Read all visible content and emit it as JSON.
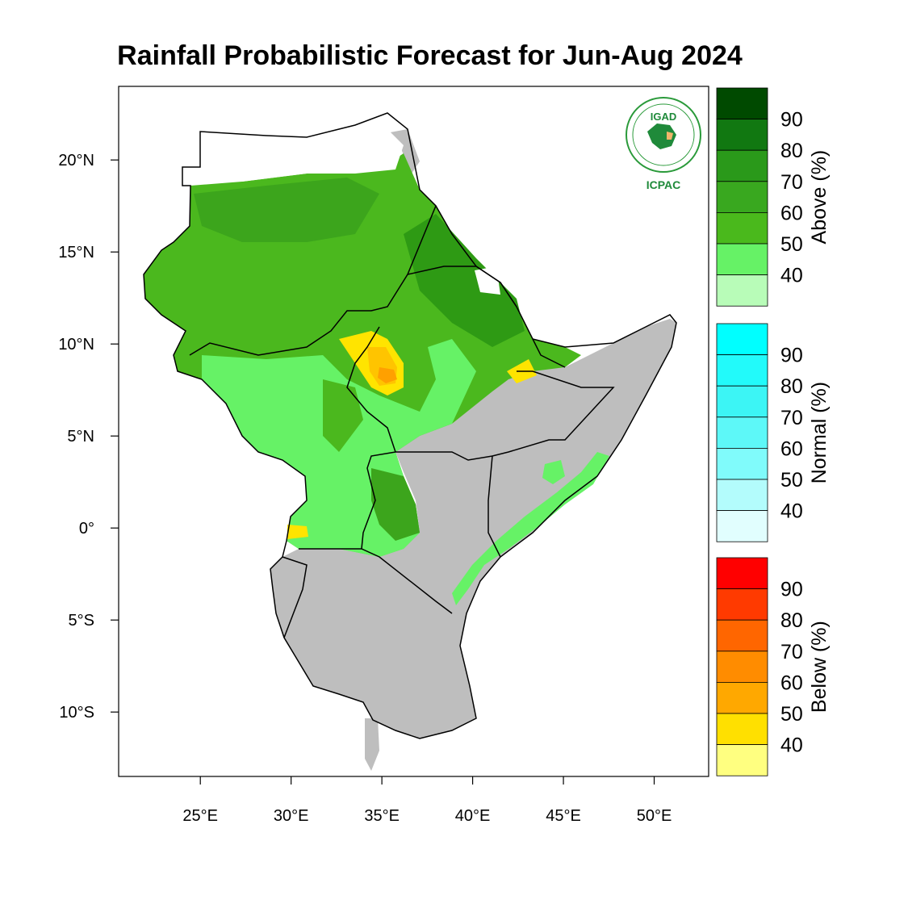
{
  "title": "Rainfall Probabilistic Forecast for Jun-Aug 2024",
  "map": {
    "lon_range": [
      20.5,
      53
    ],
    "lat_range": [
      -13.5,
      24
    ],
    "x_ticks": [
      {
        "lon": 25,
        "label": "25°E"
      },
      {
        "lon": 30,
        "label": "30°E"
      },
      {
        "lon": 35,
        "label": "35°E"
      },
      {
        "lon": 40,
        "label": "40°E"
      },
      {
        "lon": 45,
        "label": "45°E"
      },
      {
        "lon": 50,
        "label": "50°E"
      }
    ],
    "y_ticks": [
      {
        "lat": 20,
        "label": "20°N"
      },
      {
        "lat": 15,
        "label": "15°N"
      },
      {
        "lat": 10,
        "label": "10°N"
      },
      {
        "lat": 5,
        "label": "5°N"
      },
      {
        "lat": 0,
        "label": "0°"
      },
      {
        "lat": -5,
        "label": "5°S"
      },
      {
        "lat": -10,
        "label": "10°S"
      }
    ],
    "colors": {
      "land_gray": "#bebebe",
      "above_40": "#66f266",
      "above_50": "#4bb81e",
      "above_60": "#3ca51c",
      "above_70": "#2e9a14",
      "below_40": "#ffe400",
      "below_50": "#ffc400",
      "below_60": "#ffa000"
    }
  },
  "legends": [
    {
      "title": "Above (%)",
      "labels": [
        "90",
        "80",
        "70",
        "60",
        "50",
        "40"
      ],
      "colors": [
        "#004a00",
        "#117811",
        "#2a991a",
        "#39a81f",
        "#4ab91c",
        "#66f266",
        "#b8fcb8"
      ]
    },
    {
      "title": "Normal (%)",
      "labels": [
        "90",
        "80",
        "70",
        "60",
        "50",
        "40"
      ],
      "colors": [
        "#00ffff",
        "#22fafa",
        "#3cf5f5",
        "#5df8f8",
        "#80fbfb",
        "#b3fcfc",
        "#e1fefe"
      ]
    },
    {
      "title": "Below (%)",
      "labels": [
        "90",
        "80",
        "70",
        "60",
        "50",
        "40"
      ],
      "colors": [
        "#ff0000",
        "#ff3a00",
        "#ff6600",
        "#ff8c00",
        "#ffa800",
        "#ffe000",
        "#ffff80"
      ]
    }
  ],
  "logo": {
    "abbrev": "IGAD",
    "name": "ICPAC"
  }
}
